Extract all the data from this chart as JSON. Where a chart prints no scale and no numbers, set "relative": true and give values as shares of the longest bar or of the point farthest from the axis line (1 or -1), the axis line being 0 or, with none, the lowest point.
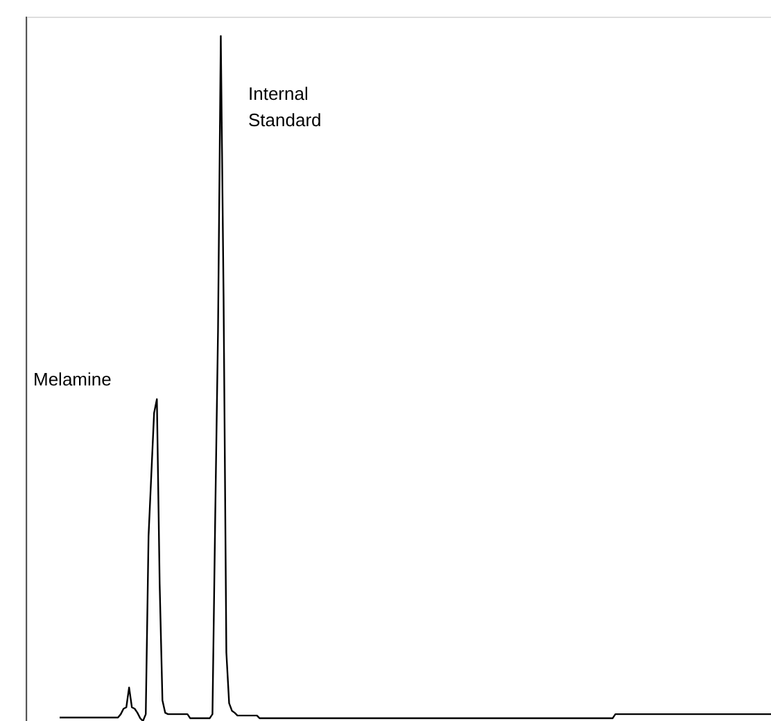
{
  "chart_data": {
    "type": "line",
    "relative": true,
    "categories": [
      null,
      null,
      null,
      null,
      null,
      null,
      null,
      null,
      null,
      null,
      null,
      null,
      null,
      null,
      null,
      null,
      null,
      null,
      null,
      null,
      null,
      null,
      null,
      null,
      null,
      null,
      null,
      null,
      null,
      null,
      null,
      null,
      null,
      null,
      null,
      null,
      null,
      null,
      null,
      null,
      null,
      null,
      null,
      null,
      null,
      null,
      null,
      null,
      null,
      null,
      null,
      null,
      null,
      null,
      null,
      null,
      null,
      null,
      null,
      null,
      null,
      null,
      null,
      null,
      null,
      null,
      null,
      null,
      null,
      null,
      null,
      null,
      null,
      null,
      null,
      null,
      null,
      null,
      null,
      null,
      null,
      null,
      null,
      null,
      null,
      null,
      null,
      null,
      null,
      null,
      null,
      null,
      null,
      null,
      null,
      null,
      null,
      null,
      null,
      null,
      null,
      null,
      null,
      null,
      null,
      null,
      null,
      null,
      null,
      null,
      null,
      null,
      null,
      null,
      null,
      null,
      null,
      null,
      null,
      null,
      null,
      null,
      null,
      null,
      null,
      null,
      null,
      null,
      null,
      null,
      null,
      null,
      null,
      null,
      null,
      null,
      null,
      null,
      null,
      null,
      null,
      null,
      null,
      null,
      null,
      null,
      null,
      null,
      null,
      null,
      null,
      null,
      null,
      null,
      null,
      null,
      null,
      null,
      null,
      null,
      null,
      null,
      null,
      null,
      null,
      null,
      null,
      null,
      null,
      null,
      null,
      null,
      null,
      null,
      null,
      null,
      null,
      null,
      null,
      null,
      null,
      null,
      null,
      null,
      null,
      null,
      null,
      null,
      null,
      null,
      null,
      null,
      null,
      null,
      null,
      null,
      null,
      null,
      null,
      null,
      null,
      null,
      null,
      null,
      null,
      null,
      null,
      null,
      null,
      null,
      null,
      null,
      null,
      null,
      null,
      null,
      null,
      null,
      null,
      null,
      null,
      null,
      null,
      null,
      null,
      null,
      null,
      null,
      null,
      null,
      null,
      null,
      null,
      null,
      null,
      null,
      null,
      null,
      null,
      null,
      null,
      null,
      null,
      null,
      null,
      null,
      null,
      null,
      null,
      null,
      null,
      null,
      null,
      null,
      null,
      null,
      null
    ],
    "series": [
      {
        "color": "#000000",
        "values": [
          0.005,
          0.005,
          0.005,
          0.005,
          0.005,
          0.005,
          0.005,
          0.005,
          0.005,
          0.005,
          0.005,
          0.005,
          0.005,
          0.005,
          0.005,
          0.005,
          0.005,
          0.005,
          0.005,
          0.005,
          0.005,
          0.005,
          0.01,
          0.018,
          0.02,
          0.049,
          0.02,
          0.018,
          0.012,
          0.004,
          0,
          0.01,
          0.27,
          0.36,
          0.45,
          0.47,
          0.2,
          0.03,
          0.012,
          0.01,
          0.01,
          0.01,
          0.01,
          0.01,
          0.01,
          0.01,
          0.01,
          0.004,
          0.004,
          0.004,
          0.004,
          0.004,
          0.004,
          0.004,
          0.004,
          0.01,
          0.3,
          0.57,
          1.0,
          0.62,
          0.1,
          0.026,
          0.015,
          0.012,
          0.008,
          0.008,
          0.008,
          0.008,
          0.008,
          0.008,
          0.008,
          0.008,
          0.004,
          0.004,
          0.004,
          0.004,
          0.004,
          0.004,
          0.004,
          0.004,
          0.004,
          0.004,
          0.004,
          0.004,
          0.004,
          0.004,
          0.004,
          0.004,
          0.004,
          0.004,
          0.004,
          0.004,
          0.004,
          0.004,
          0.004,
          0.004,
          0.004,
          0.004,
          0.004,
          0.004,
          0.004,
          0.004,
          0.004,
          0.004,
          0.004,
          0.004,
          0.004,
          0.004,
          0.004,
          0.004,
          0.004,
          0.004,
          0.004,
          0.004,
          0.004,
          0.004,
          0.004,
          0.004,
          0.004,
          0.004,
          0.004,
          0.004,
          0.004,
          0.004,
          0.004,
          0.004,
          0.004,
          0.004,
          0.004,
          0.004,
          0.004,
          0.004,
          0.004,
          0.004,
          0.004,
          0.004,
          0.004,
          0.004,
          0.004,
          0.004,
          0.004,
          0.004,
          0.004,
          0.004,
          0.004,
          0.004,
          0.004,
          0.004,
          0.004,
          0.004,
          0.004,
          0.004,
          0.004,
          0.004,
          0.004,
          0.004,
          0.004,
          0.004,
          0.004,
          0.004,
          0.004,
          0.004,
          0.004,
          0.004,
          0.004,
          0.004,
          0.004,
          0.004,
          0.004,
          0.004,
          0.004,
          0.004,
          0.004,
          0.004,
          0.004,
          0.004,
          0.004,
          0.004,
          0.004,
          0.004,
          0.004,
          0.004,
          0.004,
          0.004,
          0.004,
          0.004,
          0.004,
          0.004,
          0.004,
          0.004,
          0.004,
          0.004,
          0.004,
          0.004,
          0.004,
          0.004,
          0.004,
          0.004,
          0.004,
          0.004,
          0.01,
          0.01,
          0.01,
          0.01,
          0.01,
          0.01,
          0.01,
          0.01,
          0.01,
          0.01,
          0.01,
          0.01,
          0.01,
          0.01,
          0.01,
          0.01,
          0.01,
          0.01,
          0.01,
          0.01,
          0.01,
          0.01,
          0.01,
          0.01,
          0.01,
          0.01,
          0.01,
          0.01,
          0.01,
          0.01,
          0.01,
          0.01,
          0.01,
          0.01,
          0.01,
          0.01,
          0.01,
          0.01,
          0.01,
          0.01,
          0.01,
          0.01,
          0.01,
          0.01,
          0.01,
          0.01,
          0.01,
          0.01,
          0.01,
          0.01,
          0.01,
          0.01,
          0.01,
          0.01,
          0.01,
          0.01,
          0.01
        ]
      }
    ],
    "annotations": [
      "Melamine",
      "Internal Standard"
    ]
  }
}
